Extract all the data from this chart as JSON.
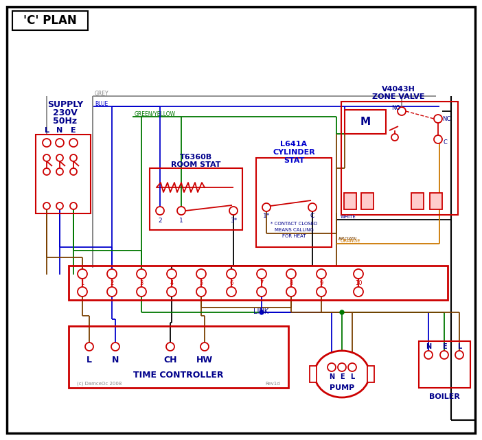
{
  "title": "'C' PLAN",
  "bg_color": "#ffffff",
  "red": "#cc0000",
  "blue": "#0000cc",
  "green": "#007700",
  "grey": "#888888",
  "brown": "#7a4000",
  "orange": "#cc7700",
  "black": "#000000",
  "dark_blue": "#00008b",
  "pink_fill": "#ffaaaa",
  "supply_labels": [
    "L",
    "N",
    "E"
  ],
  "zone_valve_title": [
    "V4043H",
    "ZONE VALVE"
  ],
  "room_stat_title": [
    "T6360B",
    "ROOM STAT"
  ],
  "cyl_stat_title": [
    "L641A",
    "CYLINDER",
    "STAT"
  ],
  "time_controller_label": "TIME CONTROLLER",
  "tc_bottom_labels": [
    "L",
    "N",
    "CH",
    "HW"
  ],
  "pump_label": "PUMP",
  "boiler_label": "BOILER",
  "pump_nel": [
    "N",
    "E",
    "L"
  ],
  "boiler_nel": [
    "N",
    "E",
    "L"
  ],
  "link_label": "LINK",
  "contact_note": [
    "* CONTACT CLOSED",
    "MEANS CALLING",
    "FOR HEAT"
  ],
  "copyright": "(c) DamceOc 2008",
  "revid": "Rev1d"
}
